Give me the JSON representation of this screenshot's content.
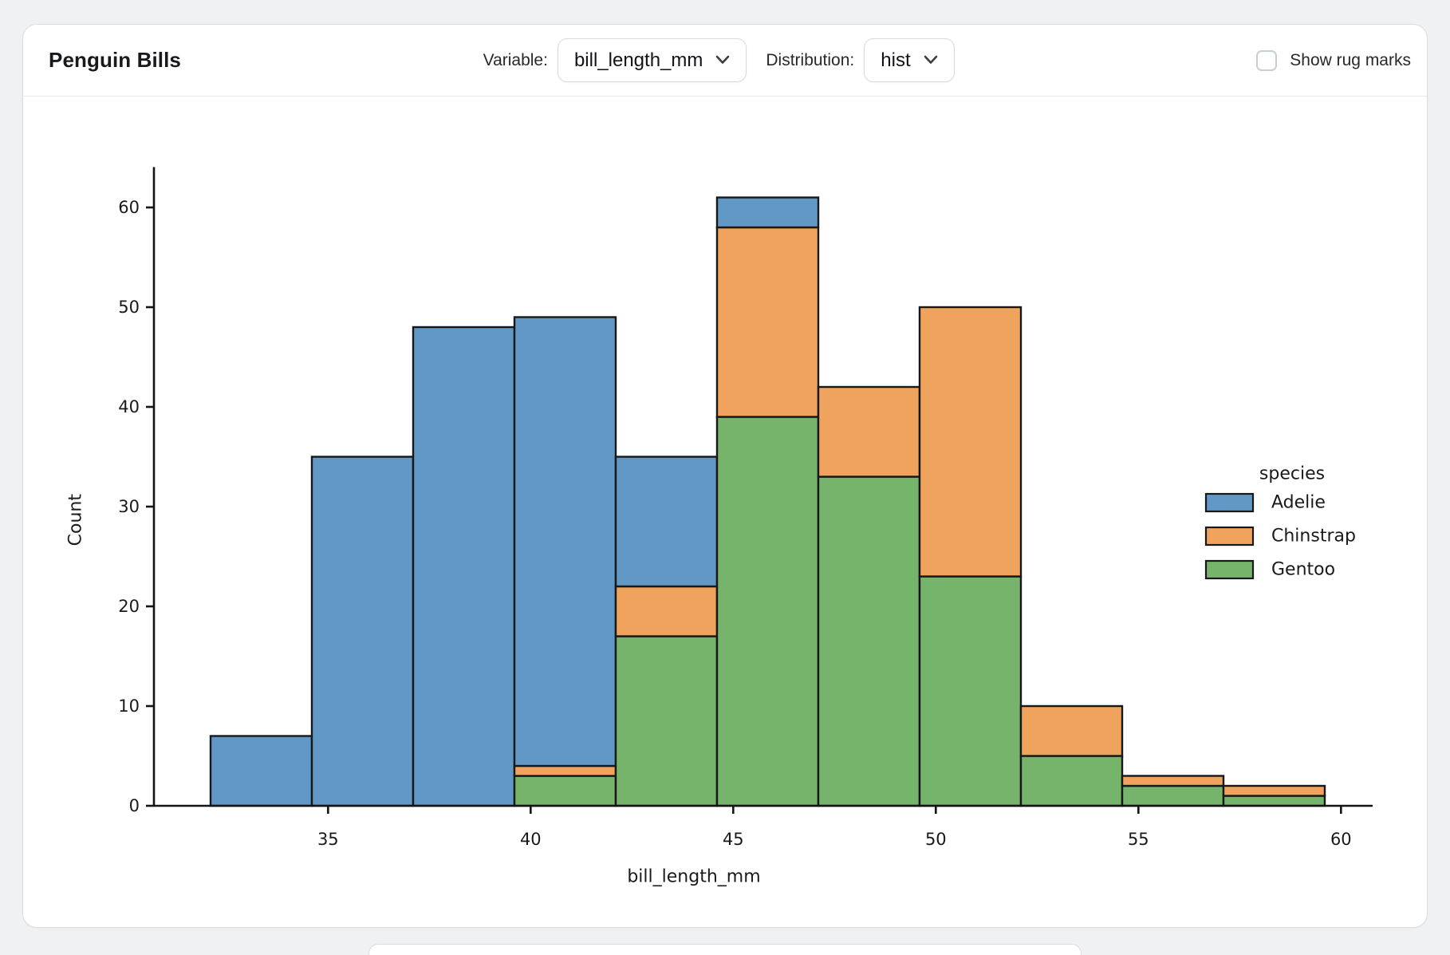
{
  "header": {
    "title": "Penguin Bills",
    "variable_label": "Variable:",
    "variable_value": "bill_length_mm",
    "distribution_label": "Distribution:",
    "distribution_value": "hist",
    "rug_label": "Show rug marks",
    "rug_checked": false
  },
  "chart_data": {
    "type": "bar",
    "subtype": "stacked-histogram",
    "title": "",
    "xlabel": "bill_length_mm",
    "ylabel": "Count",
    "bin_edges": [
      32.1,
      34.6,
      37.1,
      39.6,
      42.1,
      44.6,
      47.1,
      49.6,
      52.1,
      54.6,
      57.1,
      59.6
    ],
    "x_ticks": [
      35,
      40,
      45,
      50,
      55,
      60
    ],
    "y_ticks": [
      0,
      10,
      20,
      30,
      40,
      50,
      60
    ],
    "ylim": [
      0,
      64.05
    ],
    "grid": false,
    "stack_order_bottom_to_top": [
      "Gentoo",
      "Chinstrap",
      "Adelie"
    ],
    "series": [
      {
        "name": "Adelie",
        "color": "#6298c5",
        "values": [
          7,
          35,
          48,
          45,
          13,
          3,
          0,
          0,
          0,
          0,
          0
        ]
      },
      {
        "name": "Chinstrap",
        "color": "#f0a35c",
        "values": [
          0,
          0,
          0,
          1,
          5,
          19,
          9,
          27,
          5,
          1,
          1
        ]
      },
      {
        "name": "Gentoo",
        "color": "#75b46a",
        "values": [
          0,
          0,
          0,
          3,
          17,
          39,
          33,
          23,
          5,
          2,
          1
        ]
      }
    ],
    "bin_totals": [
      7,
      35,
      48,
      49,
      35,
      61,
      42,
      50,
      10,
      3,
      2
    ],
    "legend": {
      "title": "species",
      "position": "center right",
      "entries": [
        {
          "label": "Adelie",
          "color": "#6298c5"
        },
        {
          "label": "Chinstrap",
          "color": "#f0a35c"
        },
        {
          "label": "Gentoo",
          "color": "#75b46a"
        }
      ]
    },
    "bar_edge_color": "#17181a",
    "text_color": "#1a1a1a"
  }
}
